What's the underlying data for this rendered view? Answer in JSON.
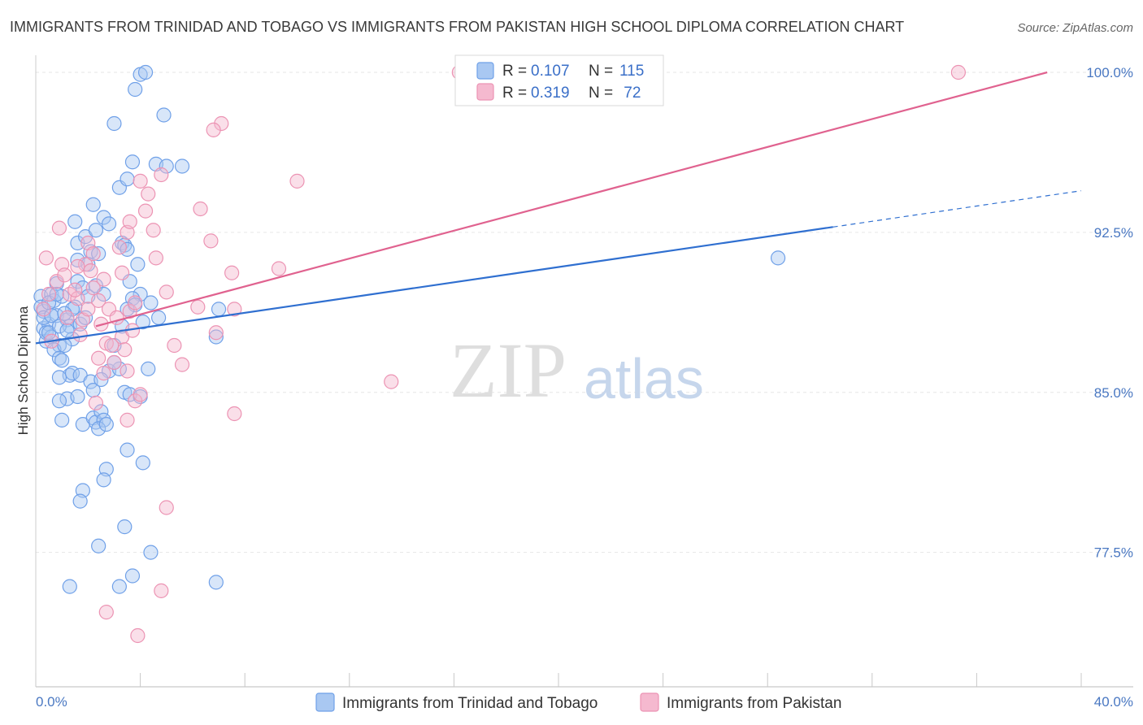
{
  "chart_data": {
    "type": "scatter",
    "title": "IMMIGRANTS FROM TRINIDAD AND TOBAGO VS IMMIGRANTS FROM PAKISTAN HIGH SCHOOL DIPLOMA CORRELATION CHART",
    "source": "Source: ZipAtlas.com",
    "xlabel": "",
    "ylabel": "High School Diploma",
    "xlim": [
      0,
      40
    ],
    "ylim": [
      71.2,
      100.8
    ],
    "x_tick_labels": {
      "left": "0.0%",
      "right": "40.0%"
    },
    "y_ticks": [
      {
        "value": 100.0,
        "label": "100.0%"
      },
      {
        "value": 92.5,
        "label": "92.5%"
      },
      {
        "value": 85.0,
        "label": "85.0%"
      },
      {
        "value": 77.5,
        "label": "77.5%"
      }
    ],
    "watermark": {
      "zip": "ZIP",
      "atlas": "atlas"
    },
    "legend": {
      "rows": [
        {
          "r_label": "R =",
          "r_value": "0.107",
          "n_label": "N =",
          "n_value": "115"
        },
        {
          "r_label": "R =",
          "r_value": "0.319",
          "n_label": "N =",
          "n_value": " 72"
        }
      ]
    },
    "series": [
      {
        "name": "Immigrants from Trinidad and Tobago",
        "color": "#6fa0e8",
        "fill": "#a9c8f2",
        "line_color": "#2f6fd0",
        "trend": {
          "x0": 0,
          "y0": 87.3,
          "x1": 30.5,
          "y1": 92.75,
          "dash_x1": 40,
          "dash_y1": 94.45
        },
        "points": [
          [
            0.2,
            89.5
          ],
          [
            0.3,
            88.8
          ],
          [
            0.3,
            88.0
          ],
          [
            0.4,
            87.4
          ],
          [
            0.2,
            89.0
          ],
          [
            0.5,
            88.2
          ],
          [
            0.6,
            89.6
          ],
          [
            0.4,
            87.8
          ],
          [
            0.7,
            89.3
          ],
          [
            0.8,
            88.6
          ],
          [
            0.9,
            87.2
          ],
          [
            0.5,
            89.2
          ],
          [
            0.3,
            88.5
          ],
          [
            0.6,
            87.6
          ],
          [
            1.0,
            89.5
          ],
          [
            0.8,
            90.1
          ],
          [
            0.7,
            87.0
          ],
          [
            1.2,
            88.4
          ],
          [
            1.4,
            87.5
          ],
          [
            1.1,
            87.2
          ],
          [
            0.9,
            86.6
          ],
          [
            1.3,
            88.1
          ],
          [
            1.5,
            89.0
          ],
          [
            1.6,
            90.2
          ],
          [
            1.4,
            88.9
          ],
          [
            1.7,
            88.2
          ],
          [
            1.8,
            89.9
          ],
          [
            1.9,
            88.5
          ],
          [
            2.0,
            89.5
          ],
          [
            1.3,
            85.8
          ],
          [
            0.9,
            85.7
          ],
          [
            1.4,
            85.9
          ],
          [
            1.7,
            85.8
          ],
          [
            2.1,
            85.5
          ],
          [
            1.2,
            84.7
          ],
          [
            0.9,
            84.6
          ],
          [
            1.6,
            84.8
          ],
          [
            1.0,
            83.7
          ],
          [
            1.8,
            83.5
          ],
          [
            2.2,
            83.8
          ],
          [
            2.3,
            83.6
          ],
          [
            2.5,
            84.1
          ],
          [
            2.6,
            83.7
          ],
          [
            2.4,
            83.3
          ],
          [
            2.7,
            83.5
          ],
          [
            1.5,
            93.0
          ],
          [
            1.6,
            92.0
          ],
          [
            1.9,
            92.3
          ],
          [
            2.1,
            91.6
          ],
          [
            1.6,
            91.2
          ],
          [
            2.0,
            91.0
          ],
          [
            2.3,
            90.0
          ],
          [
            2.6,
            89.6
          ],
          [
            2.4,
            91.5
          ],
          [
            2.2,
            93.8
          ],
          [
            2.3,
            92.6
          ],
          [
            2.6,
            93.2
          ],
          [
            2.8,
            92.9
          ],
          [
            3.3,
            92.0
          ],
          [
            3.4,
            91.9
          ],
          [
            3.2,
            94.6
          ],
          [
            3.5,
            95.0
          ],
          [
            3.7,
            95.8
          ],
          [
            3.5,
            91.7
          ],
          [
            3.9,
            91.0
          ],
          [
            3.6,
            90.2
          ],
          [
            4.0,
            89.6
          ],
          [
            3.7,
            89.4
          ],
          [
            3.8,
            89.1
          ],
          [
            3.5,
            88.9
          ],
          [
            4.1,
            88.3
          ],
          [
            4.4,
            89.2
          ],
          [
            4.7,
            88.5
          ],
          [
            3.3,
            88.1
          ],
          [
            3.0,
            87.2
          ],
          [
            2.8,
            86.0
          ],
          [
            3.2,
            86.1
          ],
          [
            3.4,
            85.0
          ],
          [
            3.6,
            84.9
          ],
          [
            4.0,
            84.8
          ],
          [
            4.3,
            86.1
          ],
          [
            3.5,
            82.3
          ],
          [
            4.1,
            81.7
          ],
          [
            2.7,
            81.4
          ],
          [
            2.6,
            80.9
          ],
          [
            1.8,
            80.4
          ],
          [
            1.7,
            79.9
          ],
          [
            3.4,
            78.7
          ],
          [
            2.4,
            77.8
          ],
          [
            4.4,
            77.5
          ],
          [
            1.3,
            75.9
          ],
          [
            3.2,
            75.9
          ],
          [
            3.7,
            76.4
          ],
          [
            6.9,
            76.1
          ],
          [
            2.2,
            85.1
          ],
          [
            2.5,
            85.6
          ],
          [
            3.0,
            86.4
          ],
          [
            6.9,
            87.6
          ],
          [
            7.0,
            88.9
          ],
          [
            4.6,
            95.7
          ],
          [
            5.0,
            95.6
          ],
          [
            5.6,
            95.6
          ],
          [
            4.9,
            98.0
          ],
          [
            3.0,
            97.6
          ],
          [
            3.8,
            99.2
          ],
          [
            4.0,
            99.9
          ],
          [
            4.2,
            100.0
          ],
          [
            0.5,
            87.8
          ],
          [
            0.6,
            88.6
          ],
          [
            0.8,
            89.6
          ],
          [
            0.9,
            88.1
          ],
          [
            1.1,
            88.7
          ],
          [
            1.2,
            87.9
          ],
          [
            28.4,
            91.3
          ],
          [
            1.0,
            86.5
          ]
        ]
      },
      {
        "name": "Immigrants from Pakistan",
        "color": "#ec93b3",
        "fill": "#f5b9cf",
        "line_color": "#e0628f",
        "trend": {
          "x0": 2.3,
          "y0": 88.1,
          "x1": 38.7,
          "y1": 100.0
        },
        "points": [
          [
            0.4,
            91.3
          ],
          [
            0.5,
            89.6
          ],
          [
            0.3,
            88.9
          ],
          [
            0.6,
            87.4
          ],
          [
            0.8,
            90.2
          ],
          [
            0.9,
            92.7
          ],
          [
            1.0,
            91.0
          ],
          [
            1.1,
            90.5
          ],
          [
            1.3,
            89.6
          ],
          [
            1.2,
            88.5
          ],
          [
            1.6,
            89.4
          ],
          [
            1.8,
            88.4
          ],
          [
            1.9,
            91.0
          ],
          [
            2.1,
            90.7
          ],
          [
            2.2,
            89.9
          ],
          [
            2.4,
            89.3
          ],
          [
            2.0,
            92.0
          ],
          [
            2.2,
            91.5
          ],
          [
            2.6,
            90.3
          ],
          [
            2.8,
            88.9
          ],
          [
            2.5,
            88.2
          ],
          [
            2.7,
            87.3
          ],
          [
            2.4,
            86.6
          ],
          [
            2.6,
            85.9
          ],
          [
            2.9,
            87.2
          ],
          [
            3.0,
            86.4
          ],
          [
            3.3,
            87.6
          ],
          [
            3.1,
            88.5
          ],
          [
            3.4,
            87.0
          ],
          [
            3.5,
            86.0
          ],
          [
            3.7,
            87.9
          ],
          [
            3.6,
            88.8
          ],
          [
            3.8,
            89.2
          ],
          [
            3.3,
            90.6
          ],
          [
            3.2,
            91.8
          ],
          [
            3.5,
            92.5
          ],
          [
            3.6,
            93.0
          ],
          [
            4.0,
            94.9
          ],
          [
            4.2,
            93.5
          ],
          [
            4.3,
            94.3
          ],
          [
            4.5,
            92.6
          ],
          [
            4.6,
            91.3
          ],
          [
            4.8,
            95.2
          ],
          [
            5.0,
            89.7
          ],
          [
            5.3,
            87.2
          ],
          [
            5.6,
            86.3
          ],
          [
            3.8,
            84.6
          ],
          [
            3.5,
            83.7
          ],
          [
            4.0,
            84.9
          ],
          [
            2.3,
            84.5
          ],
          [
            5.0,
            79.6
          ],
          [
            4.8,
            75.7
          ],
          [
            2.7,
            74.7
          ],
          [
            3.9,
            73.6
          ],
          [
            6.3,
            93.6
          ],
          [
            6.7,
            92.1
          ],
          [
            7.1,
            97.6
          ],
          [
            6.8,
            97.3
          ],
          [
            7.5,
            90.6
          ],
          [
            7.6,
            88.9
          ],
          [
            6.2,
            89.0
          ],
          [
            6.9,
            87.8
          ],
          [
            7.6,
            84.0
          ],
          [
            9.3,
            90.8
          ],
          [
            10.0,
            94.9
          ],
          [
            13.6,
            85.5
          ],
          [
            16.2,
            100.0
          ],
          [
            35.3,
            100.0
          ],
          [
            1.5,
            89.8
          ],
          [
            1.6,
            90.9
          ],
          [
            1.7,
            87.7
          ],
          [
            2.0,
            88.9
          ]
        ]
      }
    ]
  }
}
